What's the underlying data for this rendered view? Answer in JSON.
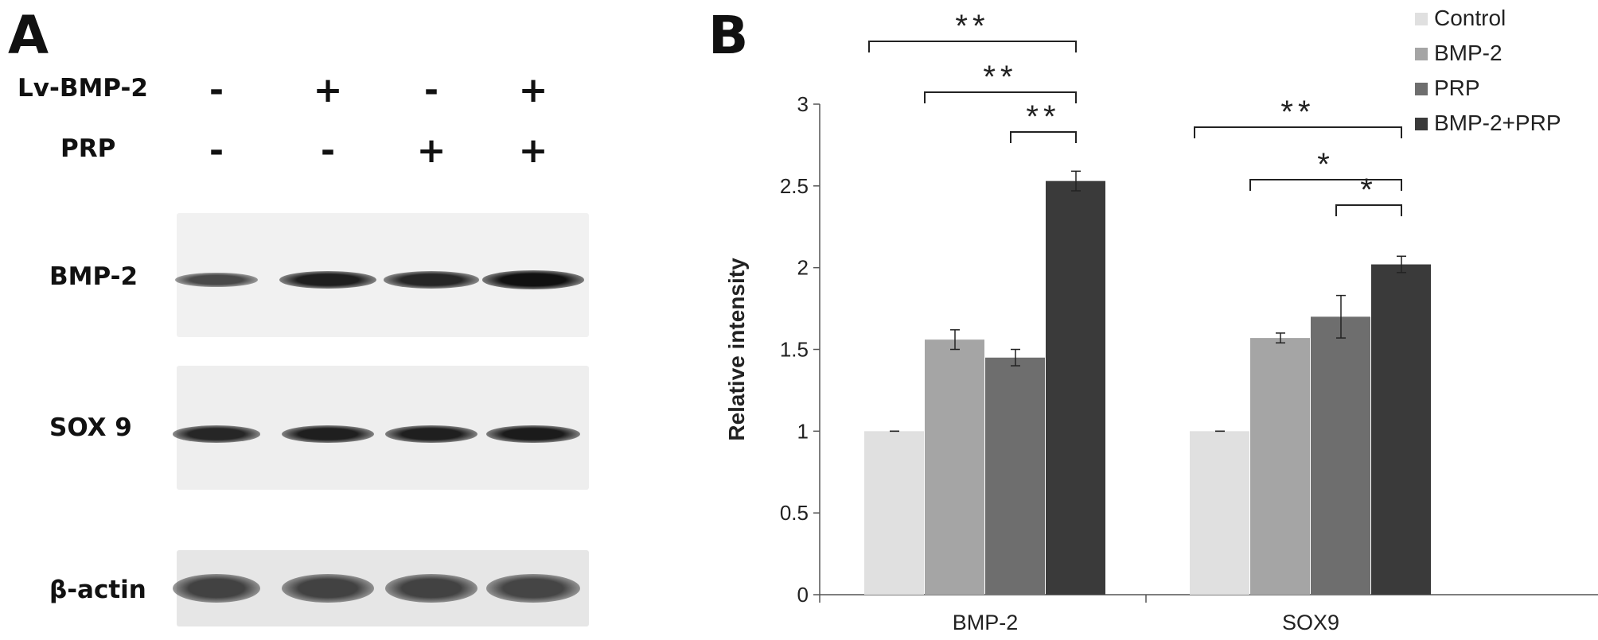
{
  "panel_a": {
    "letter": "A",
    "treatments": [
      {
        "label": "Lv-BMP-2",
        "signs": [
          "-",
          "+",
          "-",
          "+"
        ]
      },
      {
        "label": "PRP",
        "signs": [
          "-",
          "-",
          "+",
          "+"
        ]
      }
    ],
    "blots": [
      {
        "label": "BMP-2",
        "band_intensity": [
          0.55,
          0.85,
          0.8,
          0.95
        ]
      },
      {
        "label": "SOX 9",
        "band_intensity": [
          0.8,
          0.85,
          0.85,
          0.88
        ]
      },
      {
        "label": "β-actin",
        "band_intensity": [
          0.6,
          0.6,
          0.6,
          0.58
        ]
      }
    ]
  },
  "panel_b": {
    "letter": "B"
  },
  "chart_data": {
    "type": "bar",
    "categories": [
      "BMP-2",
      "SOX9"
    ],
    "series": [
      {
        "name": "Control",
        "values": [
          1.0,
          1.0
        ],
        "errors": [
          0.0,
          0.0
        ],
        "color": "#e0e0e0"
      },
      {
        "name": "BMP-2",
        "values": [
          1.56,
          1.57
        ],
        "errors": [
          0.06,
          0.03
        ],
        "color": "#a5a5a5"
      },
      {
        "name": "PRP",
        "values": [
          1.45,
          1.7
        ],
        "errors": [
          0.05,
          0.13
        ],
        "color": "#6e6e6e"
      },
      {
        "name": "BMP-2+PRP",
        "values": [
          2.53,
          2.02
        ],
        "errors": [
          0.06,
          0.05
        ],
        "color": "#3a3a3a"
      }
    ],
    "ylabel": "Relative intensity",
    "xlabel": "",
    "ylim": [
      0,
      3
    ],
    "yticks": [
      "0",
      "0.5",
      "1",
      "1.5",
      "2",
      "2.5",
      "3"
    ],
    "legend": "top-right",
    "grid": false,
    "significance": [
      {
        "category": 0,
        "from_series": 0,
        "to_series": 3,
        "label": "**"
      },
      {
        "category": 0,
        "from_series": 1,
        "to_series": 3,
        "label": "**"
      },
      {
        "category": 0,
        "from_series": 2,
        "to_series": 3,
        "label": "**"
      },
      {
        "category": 1,
        "from_series": 0,
        "to_series": 3,
        "label": "**"
      },
      {
        "category": 1,
        "from_series": 1,
        "to_series": 3,
        "label": "*"
      },
      {
        "category": 1,
        "from_series": 2,
        "to_series": 3,
        "label": "*"
      }
    ]
  }
}
